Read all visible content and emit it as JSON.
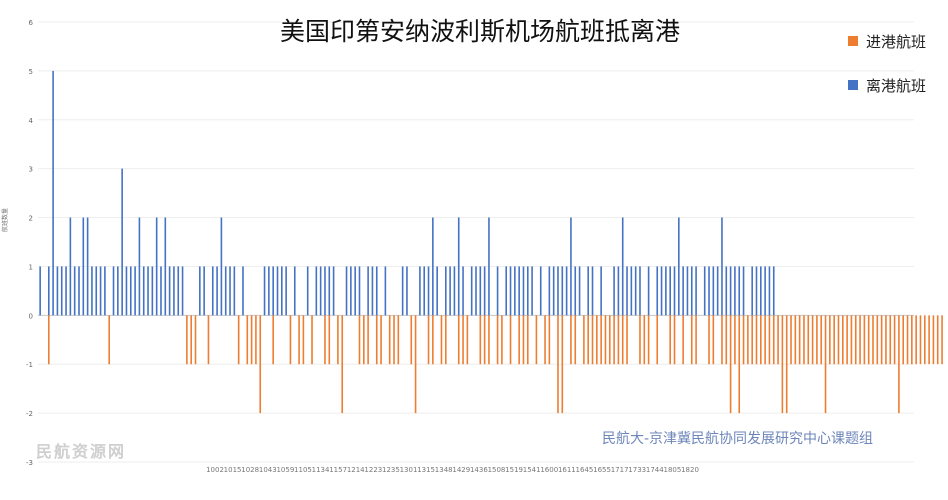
{
  "chart_data": {
    "type": "bar",
    "title": "美国印第安纳波利斯机场航班抵离港",
    "ylabel": "航班数量",
    "ylim": [
      -3,
      6
    ],
    "yticks": [
      -3,
      -2,
      -1,
      0,
      1,
      2,
      3,
      4,
      5,
      6
    ],
    "grid": true,
    "legend_position": "top-right",
    "series": [
      {
        "name": "离港航班",
        "color": "#4472c4",
        "values": [
          1,
          0,
          1,
          5,
          1,
          1,
          1,
          2,
          1,
          1,
          2,
          2,
          1,
          1,
          1,
          1,
          0,
          1,
          1,
          3,
          1,
          1,
          1,
          2,
          1,
          1,
          1,
          2,
          1,
          2,
          1,
          1,
          1,
          1,
          0,
          0,
          0,
          1,
          1,
          0,
          1,
          1,
          2,
          1,
          1,
          1,
          0,
          1,
          0,
          0,
          0,
          0,
          1,
          1,
          1,
          1,
          1,
          1,
          0,
          1,
          0,
          0,
          1,
          0,
          1,
          1,
          1,
          1,
          1,
          0,
          0,
          1,
          1,
          1,
          1,
          0,
          1,
          1,
          1,
          0,
          1,
          0,
          0,
          0,
          1,
          1,
          0,
          0,
          1,
          1,
          1,
          2,
          1,
          0,
          1,
          1,
          1,
          2,
          1,
          0,
          1,
          1,
          1,
          1,
          2,
          0,
          1,
          0,
          1,
          1,
          1,
          1,
          1,
          1,
          1,
          0,
          1,
          0,
          1,
          1,
          1,
          1,
          1,
          2,
          1,
          1,
          0,
          1,
          1,
          0,
          1,
          0,
          0,
          1,
          1,
          2,
          1,
          1,
          1,
          1,
          0,
          1,
          0,
          1,
          1,
          1,
          1,
          1,
          2,
          1,
          1,
          1,
          1,
          0,
          1,
          1,
          1,
          1,
          2,
          1,
          1,
          1,
          1,
          1,
          0,
          1,
          1,
          1,
          1,
          1,
          1,
          0,
          0,
          0,
          0,
          0,
          0,
          0,
          0,
          0,
          0,
          0,
          0,
          0,
          0,
          0,
          0,
          0,
          0,
          0,
          0,
          0,
          0,
          0,
          0,
          0,
          0,
          0,
          0,
          0,
          0,
          0,
          0
        ]
      },
      {
        "name": "进港航班",
        "color": "#ed7d31",
        "values": [
          0,
          0,
          -1,
          0,
          0,
          0,
          0,
          0,
          0,
          0,
          0,
          0,
          0,
          0,
          0,
          0,
          -1,
          0,
          0,
          0,
          0,
          0,
          0,
          0,
          0,
          0,
          0,
          0,
          0,
          0,
          0,
          0,
          0,
          0,
          -1,
          -1,
          -1,
          0,
          0,
          -1,
          0,
          0,
          0,
          0,
          0,
          0,
          -1,
          0,
          -1,
          -1,
          -1,
          -2,
          0,
          0,
          -1,
          0,
          0,
          0,
          -1,
          0,
          -1,
          -1,
          0,
          -1,
          0,
          0,
          -1,
          -1,
          0,
          -1,
          -2,
          0,
          0,
          0,
          -1,
          -1,
          -1,
          0,
          -1,
          -1,
          0,
          -1,
          -1,
          -1,
          0,
          0,
          -1,
          -2,
          0,
          0,
          -1,
          -1,
          0,
          -1,
          -1,
          0,
          0,
          -1,
          -1,
          -1,
          0,
          0,
          -1,
          -1,
          -1,
          0,
          -1,
          -1,
          0,
          -1,
          0,
          -1,
          -1,
          -1,
          0,
          -1,
          0,
          -1,
          -1,
          0,
          -2,
          -2,
          0,
          -1,
          -1,
          0,
          -1,
          -1,
          -1,
          -1,
          -1,
          -1,
          -1,
          -1,
          -1,
          -1,
          -1,
          0,
          0,
          -1,
          -1,
          -1,
          0,
          -1,
          0,
          0,
          -1,
          -1,
          0,
          -1,
          0,
          -1,
          -1,
          0,
          0,
          -1,
          -1,
          0,
          -1,
          -1,
          -2,
          -1,
          -2,
          -1,
          -1,
          -1,
          -1,
          -1,
          -1,
          -1,
          -1,
          -1,
          -2,
          -2,
          -1,
          -1,
          -1,
          -1,
          -1,
          -1,
          -1,
          -1,
          -2,
          -1,
          -1,
          -1,
          -1,
          -1,
          -1,
          -1,
          -1,
          -1,
          -1,
          -1,
          -1,
          -1,
          -1,
          -1,
          -1,
          -2,
          -1,
          -1,
          -1,
          -1,
          -1,
          -1,
          -1,
          -1,
          -1,
          -1
        ]
      }
    ],
    "x_tick_labels": [
      "1002",
      "1015",
      "1028",
      "1043",
      "1059",
      "1105",
      "1134",
      "1157",
      "1214",
      "1223",
      "1235",
      "1301",
      "1315",
      "1348",
      "1429",
      "1436",
      "1508",
      "1519",
      "1541",
      "1600",
      "1611",
      "1645",
      "1655",
      "1717",
      "1733",
      "1744",
      "1805",
      "1820"
    ]
  },
  "credit": "民航大-京津冀民航协同发展研究中心课题组",
  "watermark": "民航资源网"
}
